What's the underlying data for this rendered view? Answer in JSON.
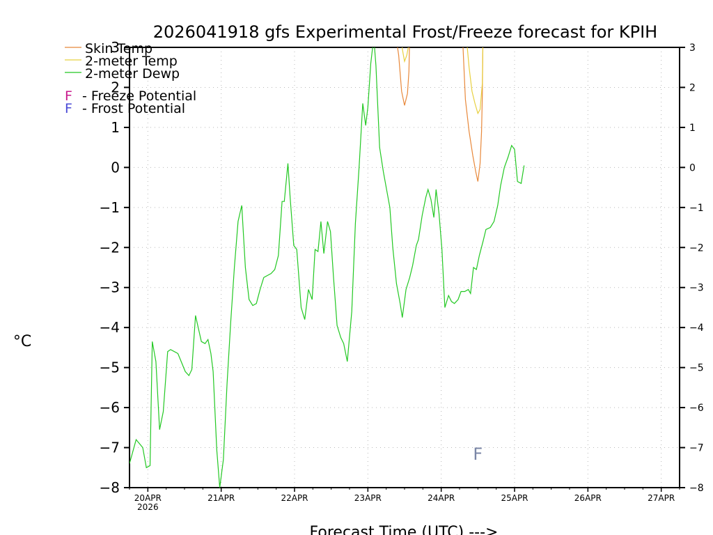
{
  "chart_data": {
    "type": "line",
    "title": "2026041918 gfs Experimental Frost/Freeze forecast for KPIH",
    "ylabel": "°C",
    "xlabel": "Forecast Time (UTC) --->",
    "ylim": [
      -8,
      3
    ],
    "yticks": [
      -8,
      -7,
      -6,
      -5,
      -4,
      -3,
      -2,
      -1,
      0,
      1,
      2,
      3
    ],
    "xlim": [
      19.75,
      27.25
    ],
    "xticks": [
      {
        "day": 20,
        "label": "20APR",
        "sublabel": "2026"
      },
      {
        "day": 21,
        "label": "21APR",
        "sublabel": ""
      },
      {
        "day": 22,
        "label": "22APR",
        "sublabel": ""
      },
      {
        "day": 23,
        "label": "23APR",
        "sublabel": ""
      },
      {
        "day": 24,
        "label": "24APR",
        "sublabel": ""
      },
      {
        "day": 25,
        "label": "25APR",
        "sublabel": ""
      },
      {
        "day": 26,
        "label": "26APR",
        "sublabel": ""
      },
      {
        "day": 27,
        "label": "27APR",
        "sublabel": ""
      }
    ],
    "series": [
      {
        "name": "Skin Temp",
        "color": "#e8883a",
        "segments": [
          [
            [
              23.38,
              3.3
            ],
            [
              23.42,
              2.8
            ],
            [
              23.46,
              1.9
            ],
            [
              23.5,
              1.55
            ],
            [
              23.54,
              1.85
            ],
            [
              23.56,
              2.4
            ],
            [
              23.57,
              3.3
            ]
          ],
          [
            [
              24.29,
              3.3
            ],
            [
              24.33,
              1.7
            ],
            [
              24.38,
              0.9
            ],
            [
              24.43,
              0.3
            ],
            [
              24.47,
              -0.1
            ],
            [
              24.5,
              -0.35
            ],
            [
              24.53,
              0.1
            ],
            [
              24.55,
              0.9
            ],
            [
              24.56,
              1.8
            ],
            [
              24.57,
              3.3
            ]
          ]
        ]
      },
      {
        "name": "2-meter Temp",
        "color": "#e8d040",
        "segments": [
          [
            [
              23.44,
              3.3
            ],
            [
              23.48,
              2.85
            ],
            [
              23.5,
              2.65
            ],
            [
              23.53,
              2.8
            ],
            [
              23.55,
              3.0
            ],
            [
              23.56,
              3.3
            ]
          ],
          [
            [
              24.34,
              3.3
            ],
            [
              24.38,
              2.5
            ],
            [
              24.42,
              1.9
            ],
            [
              24.46,
              1.6
            ],
            [
              24.5,
              1.35
            ],
            [
              24.53,
              1.45
            ],
            [
              24.56,
              2.1
            ],
            [
              24.57,
              3.3
            ]
          ]
        ]
      },
      {
        "name": "2-meter Dewp",
        "color": "#22c822",
        "segments": [
          [
            [
              19.75,
              -7.4
            ],
            [
              19.84,
              -6.8
            ],
            [
              19.93,
              -7.0
            ],
            [
              19.98,
              -7.5
            ],
            [
              20.03,
              -7.45
            ],
            [
              20.06,
              -4.35
            ],
            [
              20.11,
              -4.85
            ],
            [
              20.16,
              -6.55
            ],
            [
              20.21,
              -6.1
            ],
            [
              20.27,
              -4.6
            ],
            [
              20.31,
              -4.55
            ],
            [
              20.41,
              -4.65
            ],
            [
              20.51,
              -5.1
            ],
            [
              20.56,
              -5.2
            ],
            [
              20.6,
              -5.05
            ],
            [
              20.65,
              -3.7
            ],
            [
              20.68,
              -3.95
            ],
            [
              20.73,
              -4.35
            ],
            [
              20.78,
              -4.4
            ],
            [
              20.82,
              -4.3
            ],
            [
              20.86,
              -4.65
            ],
            [
              20.89,
              -5.1
            ],
            [
              20.94,
              -7.05
            ],
            [
              20.98,
              -8.0
            ],
            [
              21.03,
              -7.3
            ],
            [
              21.08,
              -5.4
            ],
            [
              21.13,
              -3.85
            ],
            [
              21.18,
              -2.5
            ],
            [
              21.23,
              -1.35
            ],
            [
              21.28,
              -0.95
            ],
            [
              21.33,
              -2.5
            ],
            [
              21.38,
              -3.3
            ],
            [
              21.43,
              -3.45
            ],
            [
              21.48,
              -3.4
            ],
            [
              21.53,
              -3.05
            ],
            [
              21.58,
              -2.75
            ],
            [
              21.63,
              -2.7
            ],
            [
              21.68,
              -2.65
            ],
            [
              21.73,
              -2.55
            ],
            [
              21.78,
              -2.2
            ],
            [
              21.83,
              -0.85
            ],
            [
              21.86,
              -0.85
            ],
            [
              21.91,
              0.1
            ],
            [
              21.94,
              -0.75
            ],
            [
              21.99,
              -1.95
            ],
            [
              22.03,
              -2.05
            ],
            [
              22.09,
              -3.5
            ],
            [
              22.14,
              -3.8
            ],
            [
              22.19,
              -3.05
            ],
            [
              22.24,
              -3.3
            ],
            [
              22.28,
              -2.05
            ],
            [
              22.32,
              -2.1
            ],
            [
              22.36,
              -1.35
            ],
            [
              22.4,
              -2.15
            ],
            [
              22.45,
              -1.35
            ],
            [
              22.49,
              -1.6
            ],
            [
              22.53,
              -2.7
            ],
            [
              22.58,
              -3.95
            ],
            [
              22.63,
              -4.25
            ],
            [
              22.67,
              -4.4
            ],
            [
              22.72,
              -4.85
            ],
            [
              22.78,
              -3.6
            ],
            [
              22.83,
              -1.4
            ],
            [
              22.88,
              0.0
            ],
            [
              22.93,
              1.6
            ],
            [
              22.97,
              1.05
            ],
            [
              23.0,
              1.5
            ],
            [
              23.04,
              2.6
            ],
            [
              23.08,
              3.25
            ],
            [
              23.11,
              2.55
            ],
            [
              23.16,
              0.5
            ],
            [
              23.21,
              -0.1
            ],
            [
              23.26,
              -0.6
            ],
            [
              23.3,
              -1.0
            ],
            [
              23.34,
              -2.0
            ],
            [
              23.39,
              -2.9
            ],
            [
              23.44,
              -3.4
            ],
            [
              23.47,
              -3.75
            ],
            [
              23.52,
              -3.05
            ],
            [
              23.57,
              -2.75
            ],
            [
              23.61,
              -2.45
            ],
            [
              23.66,
              -1.95
            ],
            [
              23.69,
              -1.8
            ],
            [
              23.74,
              -1.2
            ],
            [
              23.79,
              -0.75
            ],
            [
              23.82,
              -0.55
            ],
            [
              23.86,
              -0.8
            ],
            [
              23.9,
              -1.25
            ],
            [
              23.93,
              -0.55
            ],
            [
              23.97,
              -1.15
            ],
            [
              24.01,
              -2.05
            ],
            [
              24.05,
              -3.5
            ],
            [
              24.1,
              -3.2
            ],
            [
              24.14,
              -3.35
            ],
            [
              24.18,
              -3.4
            ],
            [
              24.23,
              -3.3
            ],
            [
              24.27,
              -3.1
            ],
            [
              24.32,
              -3.1
            ],
            [
              24.37,
              -3.05
            ],
            [
              24.4,
              -3.15
            ],
            [
              24.44,
              -2.5
            ],
            [
              24.48,
              -2.55
            ],
            [
              24.52,
              -2.2
            ],
            [
              24.57,
              -1.85
            ],
            [
              24.61,
              -1.55
            ],
            [
              24.67,
              -1.5
            ],
            [
              24.72,
              -1.35
            ],
            [
              24.77,
              -0.95
            ],
            [
              24.81,
              -0.45
            ],
            [
              24.86,
              0.0
            ],
            [
              24.91,
              0.25
            ],
            [
              24.96,
              0.55
            ],
            [
              25.0,
              0.45
            ],
            [
              25.04,
              -0.35
            ],
            [
              25.09,
              -0.4
            ],
            [
              25.13,
              0.05
            ]
          ]
        ]
      }
    ],
    "legend": {
      "position": "top-left",
      "entries": [
        "Skin Temp",
        "2-meter Temp",
        "2-meter Dewp"
      ],
      "potentials": [
        {
          "letter": "F",
          "text": "- Freeze Potential",
          "color": "#c8198c"
        },
        {
          "letter": "F",
          "text": "- Frost Potential",
          "color": "#4a4ad6"
        }
      ]
    },
    "annotations": [
      {
        "text": "F",
        "day": 24.5,
        "value": -7.15,
        "color": "#7a86a6",
        "meaning": "Frost Potential"
      }
    ]
  }
}
